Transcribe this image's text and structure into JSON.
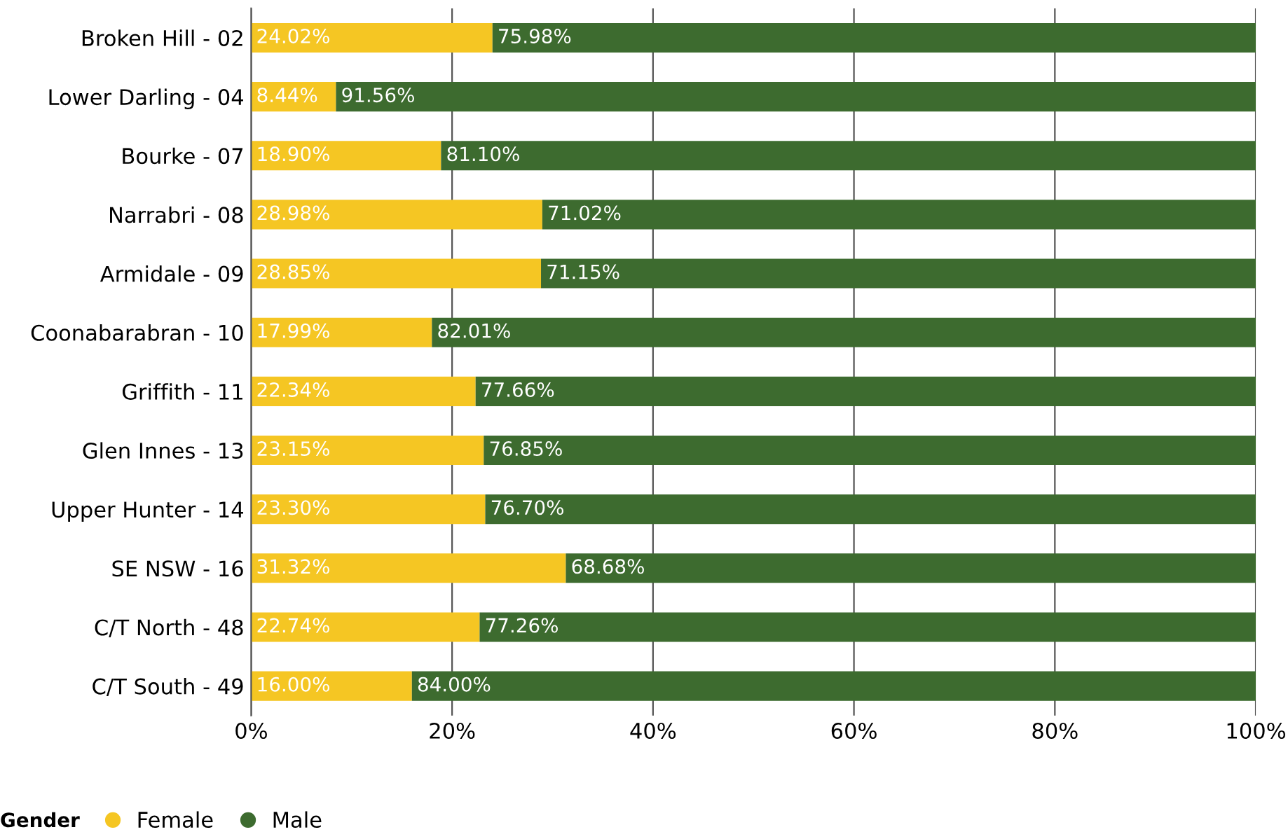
{
  "chart_data": {
    "type": "bar",
    "orientation": "horizontal",
    "stacked": true,
    "categories": [
      "Broken Hill - 02",
      "Lower Darling - 04",
      "Bourke - 07",
      "Narrabri - 08",
      "Armidale - 09",
      "Coonabarabran - 10",
      "Griffith - 11",
      "Glen Innes - 13",
      "Upper Hunter - 14",
      "SE NSW - 16",
      "C/T North - 48",
      "C/T South - 49"
    ],
    "series": [
      {
        "name": "Female",
        "color": "#f5c623",
        "values": [
          24.02,
          8.44,
          18.9,
          28.98,
          28.85,
          17.99,
          22.34,
          23.15,
          23.3,
          31.32,
          22.74,
          16.0
        ],
        "value_labels": [
          "24.02%",
          "8.44%",
          "18.90%",
          "28.98%",
          "28.85%",
          "17.99%",
          "22.34%",
          "23.15%",
          "23.30%",
          "31.32%",
          "22.74%",
          "16.00%"
        ]
      },
      {
        "name": "Male",
        "color": "#3d6b2f",
        "values": [
          75.98,
          91.56,
          81.1,
          71.02,
          71.15,
          82.01,
          77.66,
          76.85,
          76.7,
          68.68,
          77.26,
          84.0
        ],
        "value_labels": [
          "75.98%",
          "91.56%",
          "81.10%",
          "71.02%",
          "71.15%",
          "82.01%",
          "77.66%",
          "76.85%",
          "76.70%",
          "68.68%",
          "77.26%",
          "84.00%"
        ]
      }
    ],
    "xlim": [
      0,
      100
    ],
    "xticks": [
      {
        "value": 0,
        "label": "0%"
      },
      {
        "value": 20,
        "label": "20%"
      },
      {
        "value": 40,
        "label": "40%"
      },
      {
        "value": 60,
        "label": "60%"
      },
      {
        "value": 80,
        "label": "80%"
      },
      {
        "value": 100,
        "label": "100%"
      }
    ],
    "grid": "x",
    "legend": "bottom",
    "legend_title": "Gender"
  }
}
